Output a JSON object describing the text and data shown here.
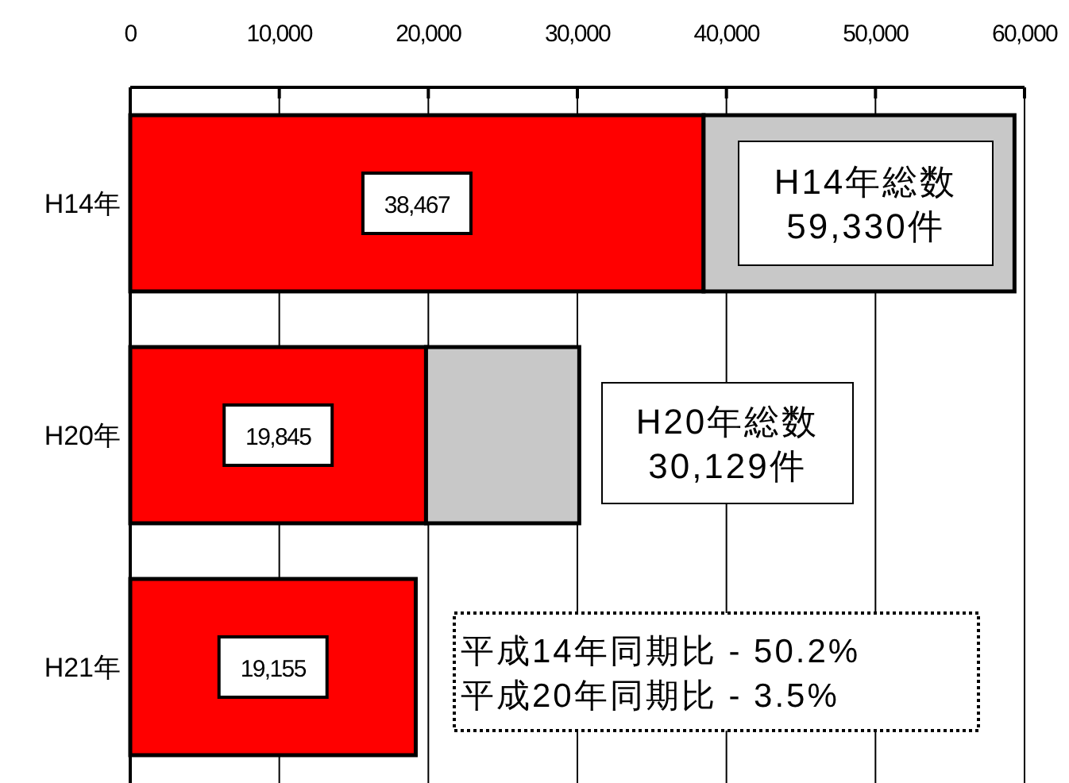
{
  "chart_data": {
    "type": "bar",
    "orientation": "horizontal",
    "stacked": true,
    "categories": [
      "H14年",
      "H20年",
      "H21年"
    ],
    "series": [
      {
        "color": "#ff0000",
        "values": [
          38467,
          19845,
          19155
        ],
        "value_labels": [
          "38,467",
          "19,845",
          "19,155"
        ]
      },
      {
        "color": "#c8c8c8",
        "values": [
          20860,
          10280,
          null
        ]
      }
    ],
    "xlim": [
      0,
      60000
    ],
    "xticks": [
      0,
      {
        "value": 10000,
        "label": "10,000"
      },
      {
        "value": 20000,
        "label": "20,000"
      },
      {
        "value": 30000,
        "label": "30,000"
      },
      {
        "value": 40000,
        "label": "40,000"
      },
      {
        "value": 50000,
        "label": "50,000"
      },
      {
        "value": 60000,
        "label": "60,000"
      }
    ],
    "grid": "x",
    "annotations": [
      "H14年総数\n59,330件",
      "H20年総数\n30,129件",
      "平成14年同期比 - 50.2%\n平成20年同期比 - 3.5%"
    ]
  }
}
